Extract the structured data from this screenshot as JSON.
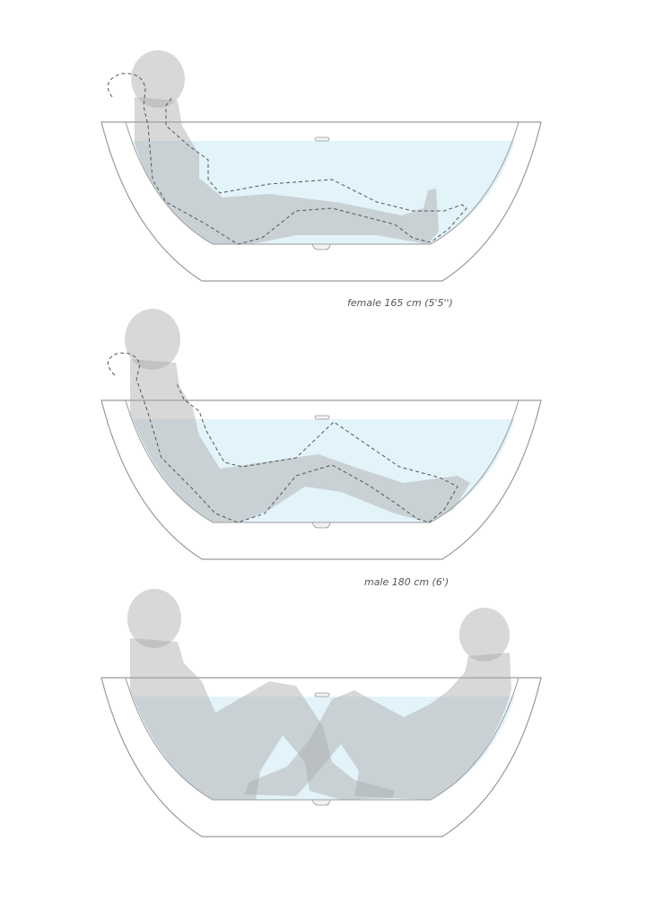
{
  "labels": {
    "female": "female 165 cm (5'5'')",
    "male": "male 180 cm (6')"
  },
  "colors": {
    "water": "#e3f3fa",
    "tub_outline": "#9a9a9a",
    "silhouette": "#c8c8c8"
  }
}
